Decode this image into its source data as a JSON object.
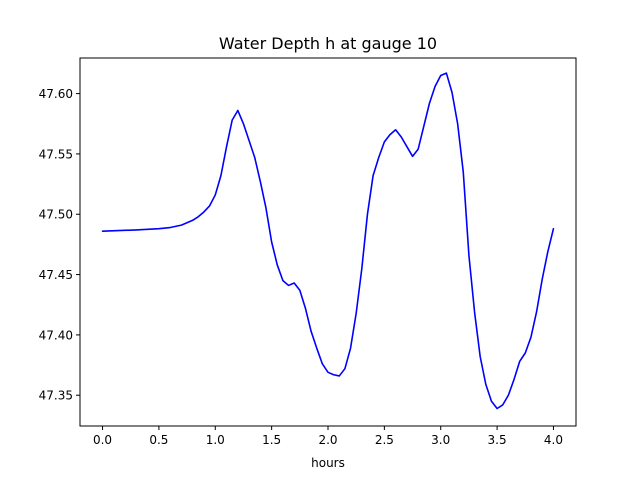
{
  "chart_data": {
    "type": "line",
    "title": "Water Depth h at gauge 10",
    "xlabel": "hours",
    "ylabel": "",
    "xlim": [
      -0.2,
      4.2
    ],
    "ylim": [
      47.3245,
      47.6295
    ],
    "xticks": [
      0.0,
      0.5,
      1.0,
      1.5,
      2.0,
      2.5,
      3.0,
      3.5,
      4.0
    ],
    "xtick_labels": [
      "0.0",
      "0.5",
      "1.0",
      "1.5",
      "2.0",
      "2.5",
      "3.0",
      "3.5",
      "4.0"
    ],
    "yticks": [
      47.35,
      47.4,
      47.45,
      47.5,
      47.55,
      47.6
    ],
    "ytick_labels": [
      "47.35",
      "47.40",
      "47.45",
      "47.50",
      "47.55",
      "47.60"
    ],
    "grid": false,
    "legend": "none",
    "series": [
      {
        "color": "#0000ff",
        "x": [
          0.0,
          0.3,
          0.5,
          0.6,
          0.7,
          0.8,
          0.85,
          0.9,
          0.95,
          1.0,
          1.05,
          1.1,
          1.15,
          1.2,
          1.25,
          1.3,
          1.35,
          1.4,
          1.45,
          1.5,
          1.55,
          1.6,
          1.65,
          1.7,
          1.75,
          1.8,
          1.85,
          1.9,
          1.95,
          2.0,
          2.05,
          2.1,
          2.15,
          2.2,
          2.25,
          2.3,
          2.35,
          2.4,
          2.45,
          2.5,
          2.55,
          2.6,
          2.65,
          2.7,
          2.75,
          2.8,
          2.85,
          2.9,
          2.95,
          3.0,
          3.05,
          3.1,
          3.15,
          3.2,
          3.25,
          3.3,
          3.35,
          3.4,
          3.45,
          3.5,
          3.55,
          3.6,
          3.65,
          3.7,
          3.75,
          3.8,
          3.85,
          3.9,
          3.95,
          4.0
        ],
        "y": [
          47.486,
          47.487,
          47.488,
          47.489,
          47.491,
          47.495,
          47.498,
          47.502,
          47.507,
          47.516,
          47.532,
          47.556,
          47.578,
          47.586,
          47.575,
          47.561,
          47.547,
          47.527,
          47.505,
          47.477,
          47.458,
          47.445,
          47.441,
          47.443,
          47.437,
          47.422,
          47.403,
          47.389,
          47.376,
          47.369,
          47.367,
          47.366,
          47.372,
          47.389,
          47.418,
          47.455,
          47.5,
          47.532,
          47.547,
          47.56,
          47.566,
          47.57,
          47.564,
          47.556,
          47.548,
          47.554,
          47.573,
          47.592,
          47.606,
          47.615,
          47.617,
          47.601,
          47.575,
          47.535,
          47.466,
          47.419,
          47.382,
          47.359,
          47.345,
          47.339,
          47.342,
          47.35,
          47.363,
          47.378,
          47.385,
          47.398,
          47.419,
          47.446,
          47.469,
          47.488
        ]
      }
    ]
  }
}
